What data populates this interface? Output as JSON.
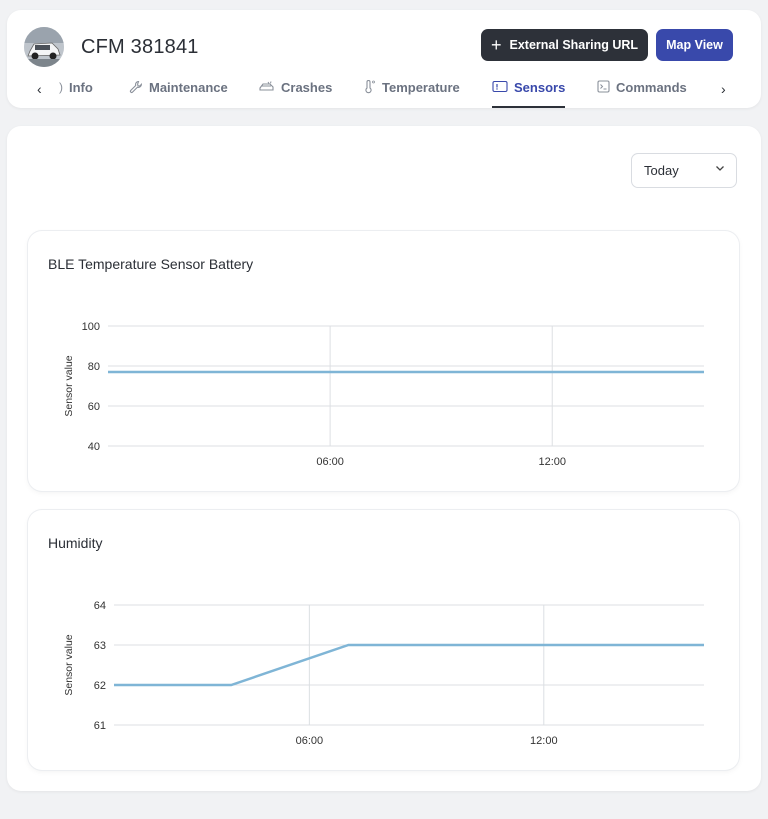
{
  "vehicle": {
    "title": "CFM 381841",
    "avatar_alt": "vehicle-photo"
  },
  "actions": {
    "share_label": "External Sharing URL",
    "map_label": "Map View"
  },
  "tabs": [
    {
      "label": "Info",
      "icon": "info-icon",
      "active": false
    },
    {
      "label": "Maintenance",
      "icon": "wrench-icon",
      "active": false
    },
    {
      "label": "Crashes",
      "icon": "crash-icon",
      "active": false
    },
    {
      "label": "Temperature",
      "icon": "thermometer-icon",
      "active": false
    },
    {
      "label": "Sensors",
      "icon": "sensor-icon",
      "active": true
    },
    {
      "label": "Commands",
      "icon": "terminal-icon",
      "active": false
    }
  ],
  "filter": {
    "value": "Today"
  },
  "colors": {
    "line": "#7fb5d6",
    "accent": "#3949ab",
    "dark": "#2d3139"
  },
  "chart_data": [
    {
      "type": "line",
      "title": "BLE Temperature Sensor Battery",
      "ylabel": "Sensor value",
      "ylim": [
        40,
        100
      ],
      "yticks": [
        40,
        60,
        80,
        100
      ],
      "xticks": [
        "06:00",
        "12:00"
      ],
      "xdomain_hours": [
        0,
        16.1
      ],
      "xtick_hours": [
        6,
        12
      ],
      "series": [
        {
          "x": [
            0,
            16.1
          ],
          "y": [
            77,
            77
          ]
        }
      ]
    },
    {
      "type": "line",
      "title": "Humidity",
      "ylabel": "Sensor value",
      "ylim": [
        61,
        64
      ],
      "yticks": [
        61,
        62,
        63,
        64
      ],
      "xticks": [
        "06:00",
        "12:00"
      ],
      "xdomain_hours": [
        0,
        15.1
      ],
      "xtick_hours": [
        5,
        11
      ],
      "series": [
        {
          "x": [
            0,
            3,
            6,
            15.1
          ],
          "y": [
            62,
            62,
            63,
            63
          ]
        }
      ]
    }
  ]
}
